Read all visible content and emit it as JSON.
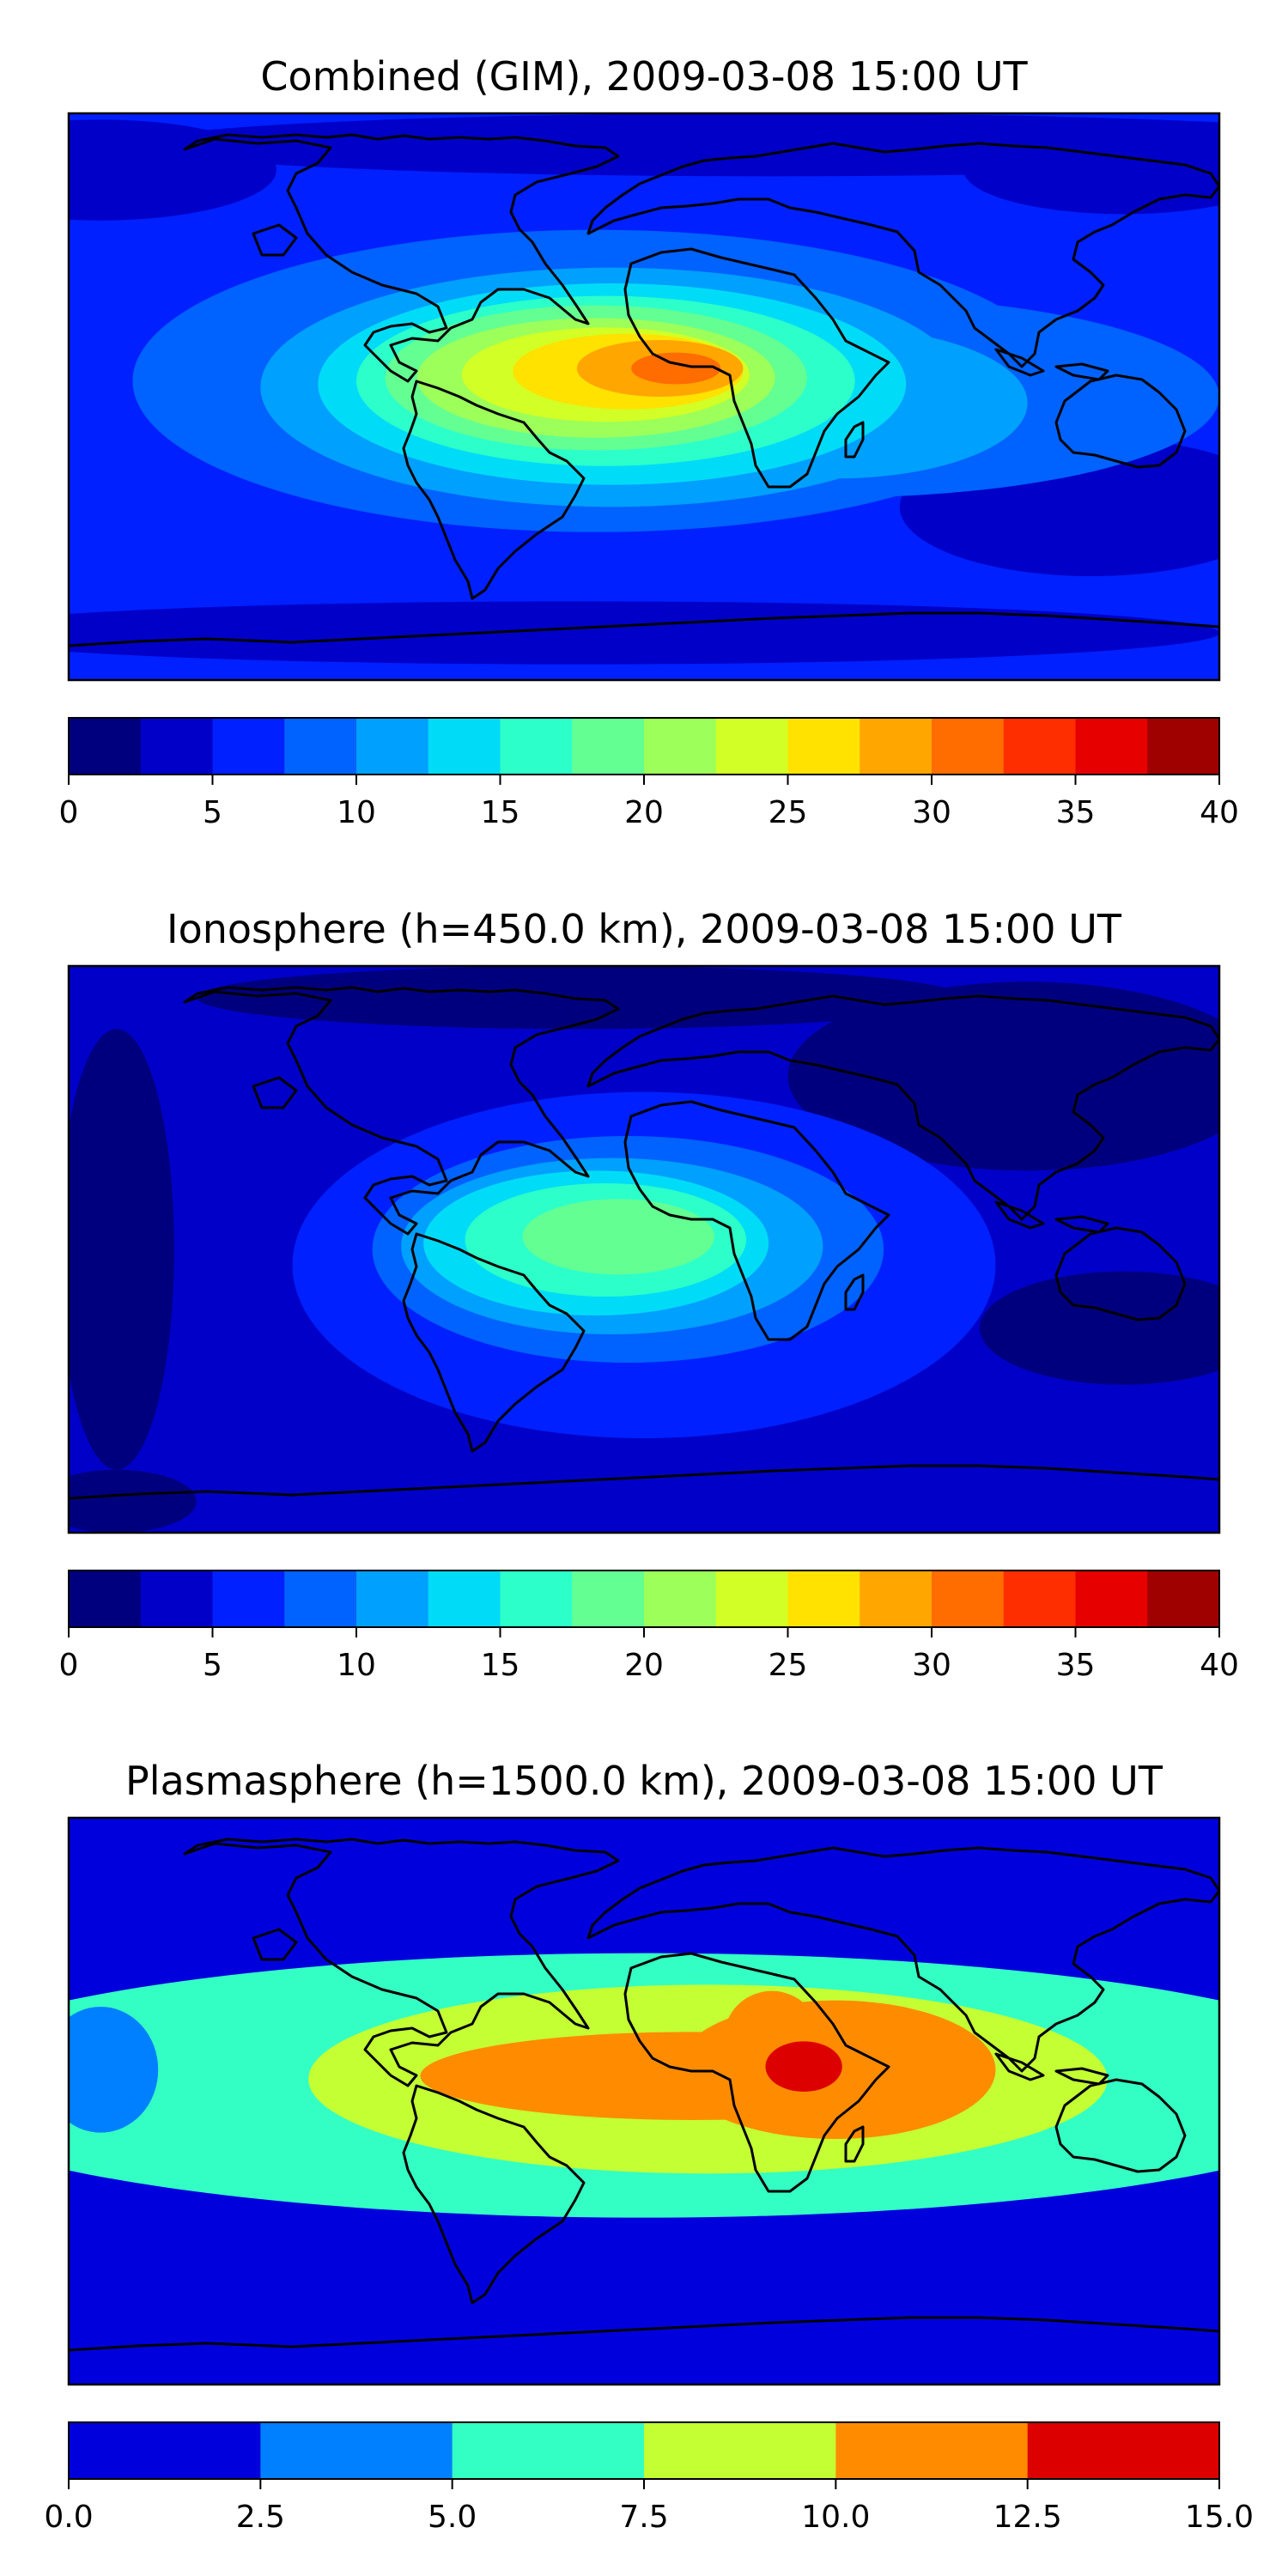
{
  "figure": {
    "palette": {
      "jet16": [
        "#00007f",
        "#0000c8",
        "#0020ff",
        "#0062ff",
        "#00a0ff",
        "#00dcf7",
        "#2cffca",
        "#63ff93",
        "#9cff5a",
        "#d2ff25",
        "#ffe200",
        "#ffa600",
        "#ff6c00",
        "#ff2e00",
        "#e60000",
        "#9f0000"
      ],
      "jet6": [
        "#0000dd",
        "#0080ff",
        "#33ffc4",
        "#c3ff33",
        "#ff8c00",
        "#dd0000"
      ]
    },
    "panels": [
      {
        "id": "combined",
        "title": "Combined (GIM), 2009-03-08 15:00 UT",
        "colorbar": {
          "ticks": [
            "0",
            "5",
            "10",
            "15",
            "20",
            "25",
            "30",
            "35",
            "40"
          ],
          "levels": 16,
          "vmin": 0,
          "vmax": 40,
          "palette": "jet16"
        },
        "field": {
          "background_level": 2,
          "blobs": [
            {
              "lon": -170,
              "lat": 72,
              "rx": 55,
              "ry": 16,
              "level": 1
            },
            {
              "lon": 40,
              "lat": 80,
              "rx": 200,
              "ry": 10,
              "level": 1
            },
            {
              "lon": 150,
              "lat": 72,
              "rx": 50,
              "ry": 14,
              "level": 1
            },
            {
              "lon": 140,
              "lat": -35,
              "rx": 60,
              "ry": 22,
              "level": 1
            },
            {
              "lon": -20,
              "lat": -75,
              "rx": 200,
              "ry": 10,
              "level": 1
            },
            {
              "lon": -15,
              "lat": 5,
              "rx": 145,
              "ry": 48,
              "level": 3
            },
            {
              "lon": 60,
              "lat": 0,
              "rx": 120,
              "ry": 32,
              "level": 3
            },
            {
              "lon": -128,
              "lat": 10,
              "rx": 10,
              "ry": 10,
              "level": 3
            },
            {
              "lon": -10,
              "lat": 3,
              "rx": 110,
              "ry": 38,
              "level": 4
            },
            {
              "lon": 60,
              "lat": -2,
              "rx": 60,
              "ry": 24,
              "level": 4
            },
            {
              "lon": -10,
              "lat": 4,
              "rx": 92,
              "ry": 32,
              "level": 5
            },
            {
              "lon": -12,
              "lat": 5,
              "rx": 78,
              "ry": 27,
              "level": 6
            },
            {
              "lon": -15,
              "lat": 6,
              "rx": 66,
              "ry": 23,
              "level": 7
            },
            {
              "lon": -15,
              "lat": 6,
              "rx": 56,
              "ry": 19,
              "level": 8
            },
            {
              "lon": -12,
              "lat": 7,
              "rx": 45,
              "ry": 15,
              "level": 9
            },
            {
              "lon": -5,
              "lat": 8,
              "rx": 36,
              "ry": 12,
              "level": 10
            },
            {
              "lon": 5,
              "lat": 9,
              "rx": 26,
              "ry": 9,
              "level": 11
            },
            {
              "lon": 10,
              "lat": 9,
              "rx": 14,
              "ry": 5,
              "level": 12
            }
          ]
        }
      },
      {
        "id": "ionosphere",
        "title": "Ionosphere  (h=450.0 km), 2009-03-08 15:00 UT",
        "colorbar": {
          "ticks": [
            "0",
            "5",
            "10",
            "15",
            "20",
            "25",
            "30",
            "35",
            "40"
          ],
          "levels": 16,
          "vmin": 0,
          "vmax": 40,
          "palette": "jet16"
        },
        "field": {
          "background_level": 1,
          "blobs": [
            {
              "lon": -165,
              "lat": 0,
              "rx": 18,
              "ry": 70,
              "level": 0
            },
            {
              "lon": 120,
              "lat": 55,
              "rx": 75,
              "ry": 30,
              "level": 0
            },
            {
              "lon": 150,
              "lat": -25,
              "rx": 45,
              "ry": 18,
              "level": 0
            },
            {
              "lon": -20,
              "lat": 80,
              "rx": 120,
              "ry": 10,
              "level": 0
            },
            {
              "lon": -165,
              "lat": -80,
              "rx": 25,
              "ry": 10,
              "level": 0
            },
            {
              "lon": 0,
              "lat": -5,
              "rx": 110,
              "ry": 55,
              "level": 2
            },
            {
              "lon": -5,
              "lat": 0,
              "rx": 80,
              "ry": 36,
              "level": 3
            },
            {
              "lon": -10,
              "lat": 1,
              "rx": 66,
              "ry": 28,
              "level": 4
            },
            {
              "lon": -15,
              "lat": 2,
              "rx": 54,
              "ry": 23,
              "level": 5
            },
            {
              "lon": -12,
              "lat": 3,
              "rx": 44,
              "ry": 18,
              "level": 6
            },
            {
              "lon": -8,
              "lat": 4,
              "rx": 30,
              "ry": 12,
              "level": 7
            }
          ]
        }
      },
      {
        "id": "plasmasphere",
        "title": "Plasmasphere (h=1500.0 km), 2009-03-08 15:00 UT",
        "colorbar": {
          "ticks": [
            "0.0",
            "2.5",
            "5.0",
            "7.5",
            "10.0",
            "12.5",
            "15.0"
          ],
          "levels": 6,
          "vmin": 0,
          "vmax": 15,
          "palette": "jet6"
        },
        "field": {
          "background_level": 0,
          "blobs": [
            {
              "lon": 0,
              "lat": 5,
              "rx": 235,
              "ry": 42,
              "level": 2
            },
            {
              "lon": -170,
              "lat": 10,
              "rx": 18,
              "ry": 20,
              "level": 1
            },
            {
              "lon": 20,
              "lat": 7,
              "rx": 125,
              "ry": 30,
              "level": 3
            },
            {
              "lon": 15,
              "lat": 8,
              "rx": 85,
              "ry": 14,
              "level": 4
            },
            {
              "lon": 60,
              "lat": 10,
              "rx": 50,
              "ry": 22,
              "level": 4
            },
            {
              "lon": 40,
              "lat": 20,
              "rx": 15,
              "ry": 15,
              "level": 4
            },
            {
              "lon": 50,
              "lat": 11,
              "rx": 12,
              "ry": 8,
              "level": 5
            }
          ]
        }
      }
    ]
  }
}
